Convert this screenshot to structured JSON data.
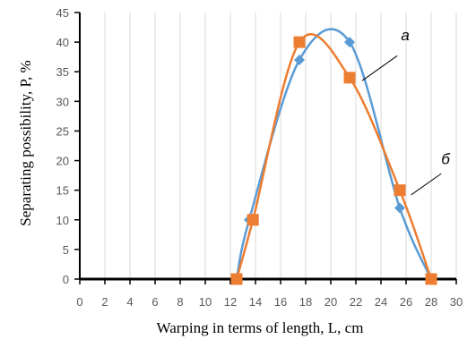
{
  "chart_data": {
    "type": "scatter",
    "xlabel": "Warping in terms of length, L, cm",
    "ylabel": "Separating possibility, P, %",
    "xlim": [
      0,
      30
    ],
    "ylim": [
      0,
      45
    ],
    "xticks": [
      0,
      2,
      4,
      6,
      8,
      10,
      12,
      14,
      16,
      18,
      20,
      22,
      24,
      26,
      28,
      30
    ],
    "yticks": [
      0,
      5,
      10,
      15,
      20,
      25,
      30,
      35,
      40,
      45
    ],
    "grid": "vertical",
    "series": [
      {
        "name": "а",
        "color": "#5b9bd5",
        "marker": "diamond",
        "smooth": true,
        "x": [
          12.5,
          13.5,
          17.5,
          21.5,
          25.5,
          28.0
        ],
        "y": [
          0,
          10,
          37,
          40,
          12,
          0
        ]
      },
      {
        "name": "б",
        "color": "#ed7d31",
        "marker": "square",
        "smooth": true,
        "x": [
          12.5,
          13.8,
          17.5,
          21.5,
          25.5,
          28.0
        ],
        "y": [
          0,
          10,
          40,
          34,
          15,
          0
        ]
      }
    ]
  }
}
